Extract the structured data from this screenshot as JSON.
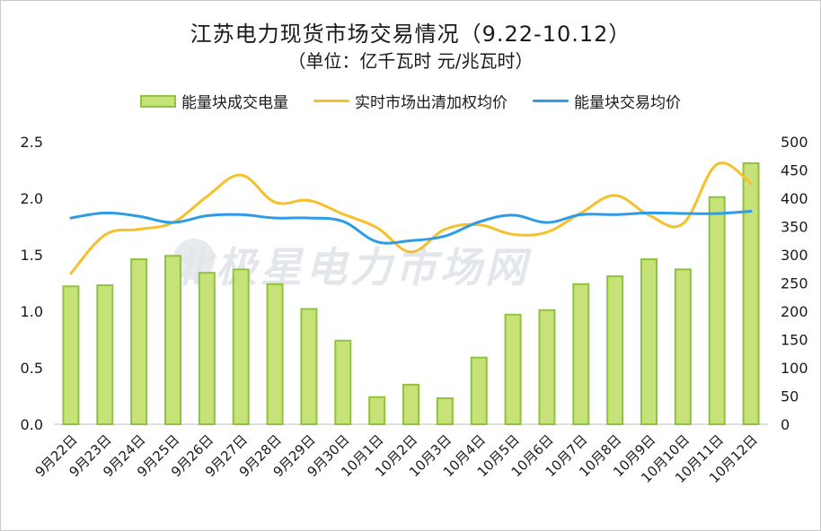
{
  "chart_data": {
    "type": "bar",
    "title": "江苏电力现货市场交易情况（9.22-10.12）",
    "subtitle": "（单位：亿千瓦时 元/兆瓦时）",
    "watermark": "北极星电力市场网",
    "categories": [
      "9月22日",
      "9月23日",
      "9月24日",
      "9月25日",
      "9月26日",
      "9月27日",
      "9月28日",
      "9月29日",
      "9月30日",
      "10月1日",
      "10月2日",
      "10月3日",
      "10月4日",
      "10月5日",
      "10月6日",
      "10月7日",
      "10月8日",
      "10月9日",
      "10月10日",
      "10月11日",
      "10月12日"
    ],
    "series": [
      {
        "name": "能量块成交电量",
        "type": "bar",
        "axis": "left",
        "color": "#c8e27a",
        "border": "#8fc43a",
        "values": [
          1.22,
          1.23,
          1.46,
          1.49,
          1.34,
          1.37,
          1.24,
          1.02,
          0.74,
          0.24,
          0.35,
          0.23,
          0.59,
          0.97,
          1.01,
          1.24,
          1.31,
          1.46,
          1.37,
          2.01,
          2.31
        ]
      },
      {
        "name": "实时市场出清加权均价",
        "type": "line",
        "axis": "right",
        "color": "#f5c02a",
        "values": [
          267,
          335,
          345,
          357,
          403,
          441,
          393,
          396,
          372,
          348,
          305,
          345,
          353,
          336,
          340,
          374,
          405,
          370,
          355,
          460,
          426
        ]
      },
      {
        "name": "能量块交易均价",
        "type": "line",
        "axis": "right",
        "color": "#2e9be6",
        "values": [
          365,
          374,
          368,
          357,
          369,
          371,
          365,
          365,
          359,
          323,
          325,
          333,
          358,
          370,
          357,
          371,
          371,
          374,
          373,
          373,
          377
        ]
      }
    ],
    "yleft": {
      "min": 0,
      "max": 2.5,
      "ticks": [
        "0.0",
        "0.5",
        "1.0",
        "1.5",
        "2.0",
        "2.5"
      ]
    },
    "yright": {
      "min": 0,
      "max": 500,
      "ticks": [
        "0",
        "50",
        "100",
        "150",
        "200",
        "250",
        "300",
        "350",
        "400",
        "450",
        "500"
      ]
    },
    "legend_position": "top",
    "grid": false
  }
}
